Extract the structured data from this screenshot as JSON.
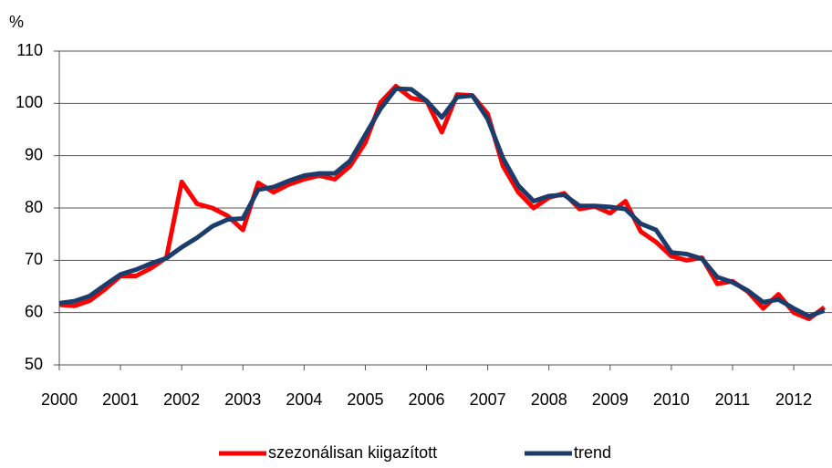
{
  "chart_data": {
    "type": "line",
    "y_label": "%",
    "x": [
      2000,
      2000.25,
      2000.5,
      2000.75,
      2001,
      2001.25,
      2001.5,
      2001.75,
      2002,
      2002.25,
      2002.5,
      2002.75,
      2003,
      2003.25,
      2003.5,
      2003.75,
      2004,
      2004.25,
      2004.5,
      2004.75,
      2005,
      2005.25,
      2005.5,
      2005.75,
      2006,
      2006.25,
      2006.5,
      2006.75,
      2007,
      2007.25,
      2007.5,
      2007.75,
      2008,
      2008.25,
      2008.5,
      2008.75,
      2009,
      2009.25,
      2009.5,
      2009.75,
      2010,
      2010.25,
      2010.5,
      2010.75,
      2011,
      2011.25,
      2011.5,
      2011.75,
      2012,
      2012.25,
      2012.5
    ],
    "series": [
      {
        "name": "szezonálisan kiigazított",
        "color": "#ff0000",
        "values": [
          61.5,
          61.3,
          62.3,
          64.5,
          67.0,
          67.0,
          68.5,
          70.5,
          85.0,
          80.8,
          80.0,
          78.5,
          75.8,
          84.8,
          83.0,
          84.5,
          85.5,
          86.2,
          85.5,
          88.0,
          92.5,
          100.2,
          103.3,
          101.0,
          100.5,
          94.5,
          101.7,
          101.5,
          98.0,
          88.0,
          83.0,
          80.0,
          82.0,
          82.8,
          79.8,
          80.3,
          79.0,
          81.3,
          75.5,
          73.5,
          70.8,
          70.0,
          70.5,
          65.5,
          66.0,
          64.0,
          60.8,
          63.5,
          60.0,
          58.8,
          61.0
        ]
      },
      {
        "name": "trend",
        "color": "#1c3d6b",
        "values": [
          61.8,
          62.2,
          63.2,
          65.3,
          67.3,
          68.2,
          69.4,
          70.4,
          72.5,
          74.3,
          76.5,
          77.8,
          78.0,
          83.5,
          84.0,
          85.2,
          86.2,
          86.6,
          86.6,
          89.0,
          94.0,
          99.0,
          102.8,
          102.7,
          100.5,
          97.3,
          101.2,
          101.5,
          97.0,
          89.5,
          84.3,
          81.3,
          82.3,
          82.5,
          80.4,
          80.4,
          80.2,
          79.8,
          77.0,
          75.8,
          71.5,
          71.2,
          70.3,
          66.8,
          65.8,
          64.2,
          62.0,
          62.5,
          60.8,
          59.3,
          60.4
        ]
      }
    ],
    "xlim": [
      2000,
      2012.625
    ],
    "xticks": [
      2000,
      2001,
      2002,
      2003,
      2004,
      2005,
      2006,
      2007,
      2008,
      2009,
      2010,
      2011,
      2012
    ],
    "ylim": [
      50,
      110
    ],
    "yticks": [
      50,
      60,
      70,
      80,
      90,
      100,
      110
    ],
    "grid": true
  }
}
